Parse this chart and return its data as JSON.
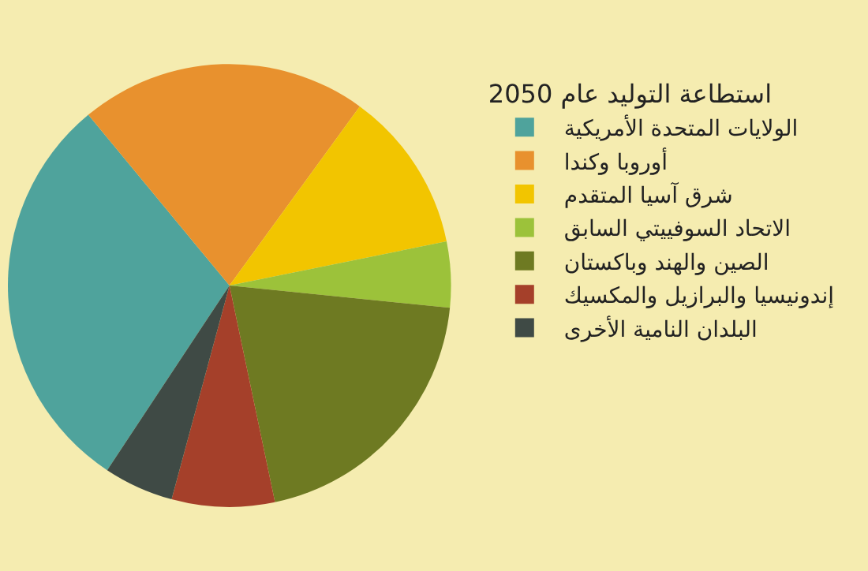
{
  "chart_data": {
    "type": "pie",
    "legend_title": "استطاعة التوليد عام 2050",
    "categories": [
      "الولايات المتحدة الأمريكية",
      "أوروبا وكندا",
      "شرق آسيا المتقدم",
      "الاتحاد السوفييتي السابق",
      "الصين والهند وباكستان",
      "إندونيسيا والبرازيل والمكسيك",
      "البلدان النامية الأخرى"
    ],
    "values": [
      29.7,
      21.0,
      11.8,
      4.8,
      20.1,
      7.5,
      5.1
    ],
    "colors": [
      "#4fa39c",
      "#e8912e",
      "#f2c500",
      "#9cc23a",
      "#6e7a22",
      "#a5402a",
      "#3f4a45"
    ],
    "legend": "right"
  }
}
